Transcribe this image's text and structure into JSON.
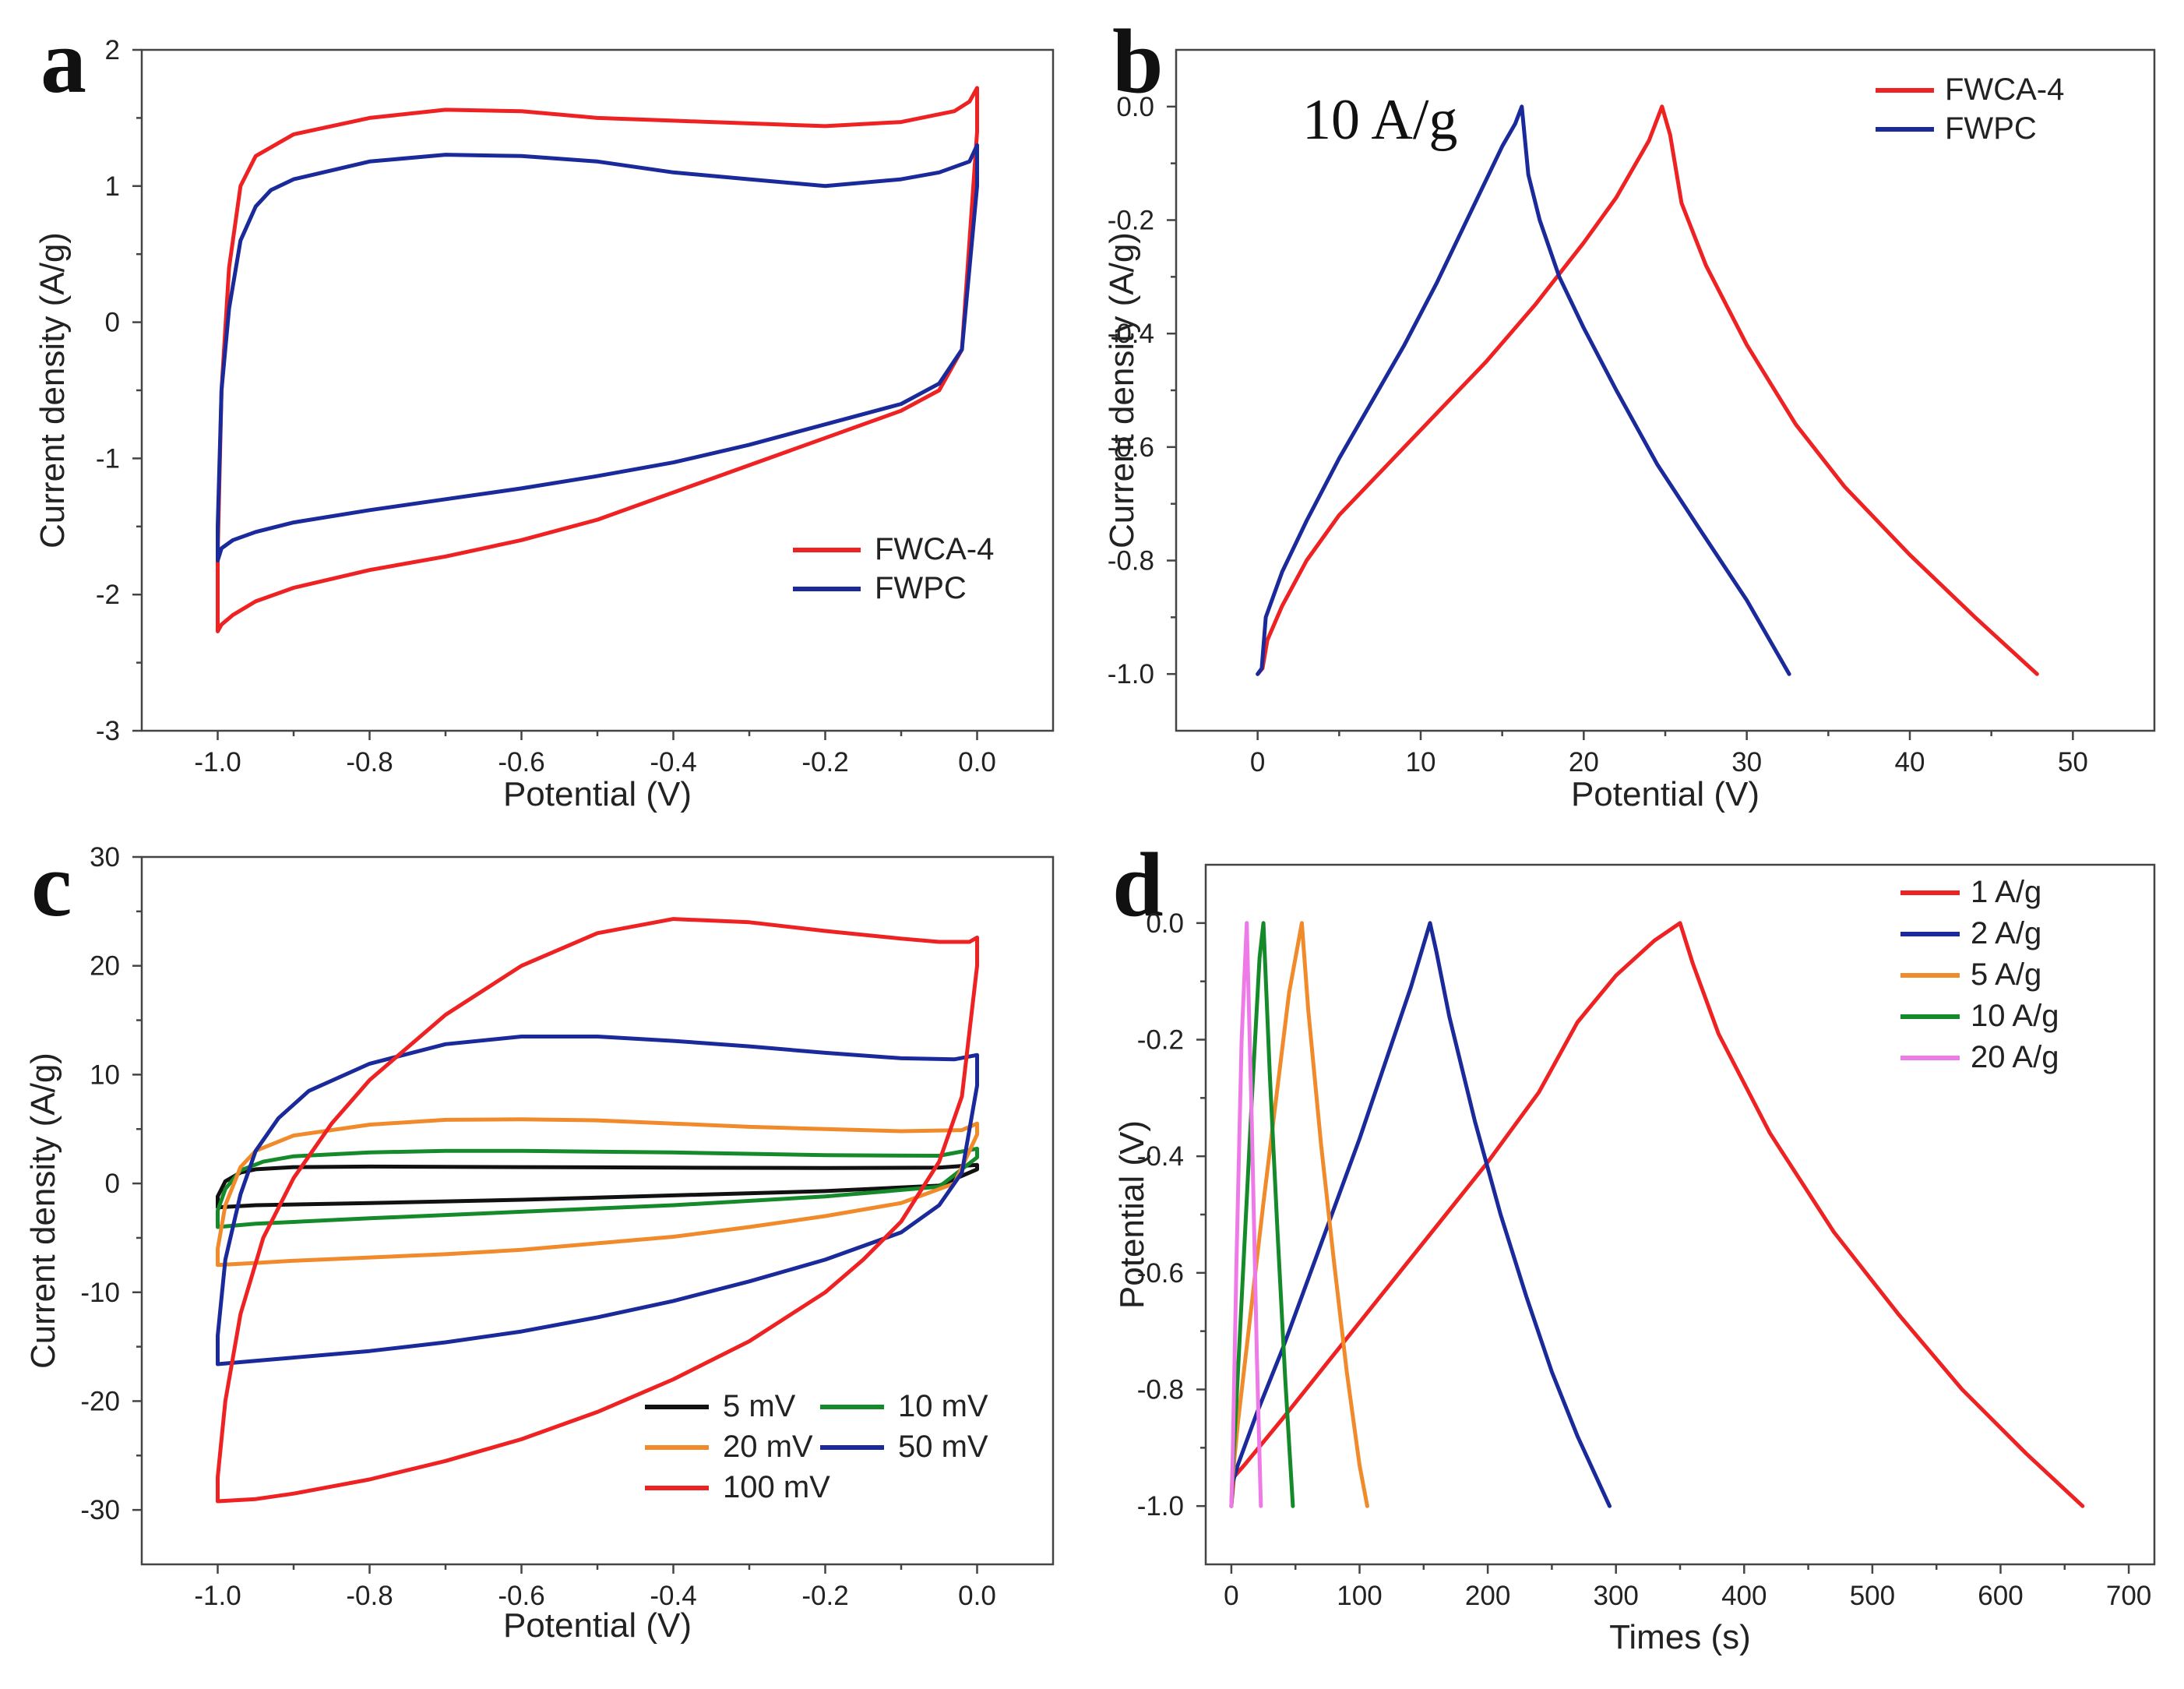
{
  "chart_data": [
    {
      "panel": "a",
      "type": "line",
      "xlabel": "Potential (V)",
      "ylabel": "Current density (A/g)",
      "xlim": [
        -1.1,
        0.1
      ],
      "ylim": [
        -3,
        2
      ],
      "xticks": [
        -1.0,
        -0.8,
        -0.6,
        -0.4,
        -0.2,
        0.0
      ],
      "xtick_labels": [
        "-1.0",
        "-0.8",
        "-0.6",
        "-0.4",
        "-0.2",
        "0.0"
      ],
      "yticks": [
        -3,
        -2,
        -1,
        0,
        1,
        2
      ],
      "ytick_labels": [
        "-3",
        "-2",
        "-1",
        "0",
        "1",
        "2"
      ],
      "legend_position": "lower-right",
      "series": [
        {
          "name": "FWCA-4",
          "color": "#ee2222",
          "x": [
            -1.0,
            -0.995,
            -0.985,
            -0.97,
            -0.95,
            -0.9,
            -0.8,
            -0.7,
            -0.6,
            -0.5,
            -0.4,
            -0.3,
            -0.2,
            -0.1,
            -0.03,
            -0.01,
            0.0,
            0.0,
            -0.02,
            -0.05,
            -0.1,
            -0.2,
            -0.3,
            -0.4,
            -0.5,
            -0.6,
            -0.7,
            -0.8,
            -0.9,
            -0.95,
            -0.98,
            -0.995,
            -1.0,
            -1.0
          ],
          "y": [
            -1.7,
            -0.5,
            0.4,
            1.0,
            1.22,
            1.38,
            1.5,
            1.56,
            1.55,
            1.5,
            1.48,
            1.46,
            1.44,
            1.47,
            1.55,
            1.62,
            1.72,
            1.4,
            -0.2,
            -0.5,
            -0.65,
            -0.85,
            -1.05,
            -1.25,
            -1.45,
            -1.6,
            -1.72,
            -1.82,
            -1.95,
            -2.05,
            -2.15,
            -2.22,
            -2.27,
            -1.7
          ]
        },
        {
          "name": "FWPC",
          "color": "#1a2a9a",
          "x": [
            -1.0,
            -0.995,
            -0.985,
            -0.97,
            -0.95,
            -0.93,
            -0.9,
            -0.8,
            -0.7,
            -0.6,
            -0.5,
            -0.4,
            -0.3,
            -0.2,
            -0.1,
            -0.05,
            -0.01,
            0.0,
            0.0,
            -0.02,
            -0.05,
            -0.1,
            -0.2,
            -0.3,
            -0.4,
            -0.5,
            -0.6,
            -0.7,
            -0.8,
            -0.9,
            -0.95,
            -0.98,
            -0.995,
            -1.0,
            -1.0
          ],
          "y": [
            -1.5,
            -0.5,
            0.1,
            0.6,
            0.85,
            0.97,
            1.05,
            1.18,
            1.23,
            1.22,
            1.18,
            1.1,
            1.05,
            1.0,
            1.05,
            1.1,
            1.18,
            1.3,
            1.0,
            -0.2,
            -0.45,
            -0.6,
            -0.75,
            -0.9,
            -1.03,
            -1.13,
            -1.22,
            -1.3,
            -1.38,
            -1.47,
            -1.54,
            -1.6,
            -1.66,
            -1.75,
            -1.5
          ]
        }
      ]
    },
    {
      "panel": "b",
      "type": "line",
      "annotation": "10 A/g",
      "xlabel": "Potential (V)",
      "ylabel": "Current density (A/g)",
      "xlim": [
        -5,
        55
      ],
      "ylim": [
        -1.1,
        0.1
      ],
      "xticks": [
        0,
        10,
        20,
        30,
        40,
        50
      ],
      "xtick_labels": [
        "0",
        "10",
        "20",
        "30",
        "40",
        "50"
      ],
      "yticks": [
        -1.0,
        -0.8,
        -0.6,
        -0.4,
        -0.2,
        0.0
      ],
      "ytick_labels": [
        "-1.0",
        "-0.8",
        "-0.6",
        "-0.4",
        "-0.2",
        "0.0"
      ],
      "legend_position": "top-right",
      "series": [
        {
          "name": "FWCA-4",
          "color": "#ee2222",
          "x": [
            0,
            0.3,
            0.6,
            1.5,
            3,
            5,
            8,
            11,
            14,
            17,
            20,
            22,
            24,
            24.8,
            25.3,
            26,
            27.5,
            30,
            33,
            36,
            40,
            44,
            47.8
          ],
          "y": [
            -1.0,
            -0.99,
            -0.94,
            -0.88,
            -0.8,
            -0.72,
            -0.63,
            -0.54,
            -0.45,
            -0.35,
            -0.24,
            -0.16,
            -0.06,
            0.0,
            -0.05,
            -0.17,
            -0.28,
            -0.42,
            -0.56,
            -0.67,
            -0.79,
            -0.9,
            -1.0
          ]
        },
        {
          "name": "FWPC",
          "color": "#1a2a9a",
          "x": [
            0,
            0.25,
            0.5,
            1.5,
            3,
            5,
            7,
            9,
            11,
            13,
            15,
            15.8,
            16.2,
            16.6,
            17.3,
            18.5,
            20,
            22,
            24.5,
            27,
            30,
            32.6
          ],
          "y": [
            -1.0,
            -0.99,
            -0.9,
            -0.82,
            -0.73,
            -0.62,
            -0.52,
            -0.42,
            -0.31,
            -0.19,
            -0.07,
            -0.03,
            0.0,
            -0.12,
            -0.2,
            -0.3,
            -0.39,
            -0.5,
            -0.63,
            -0.74,
            -0.87,
            -1.0
          ]
        }
      ]
    },
    {
      "panel": "c",
      "type": "line",
      "xlabel": "Potential (V)",
      "ylabel": "Current density (A/g)",
      "xlim": [
        -1.1,
        0.1
      ],
      "ylim": [
        -35,
        30
      ],
      "xticks": [
        -1.0,
        -0.8,
        -0.6,
        -0.4,
        -0.2,
        0.0
      ],
      "xtick_labels": [
        "-1.0",
        "-0.8",
        "-0.6",
        "-0.4",
        "-0.2",
        "0.0"
      ],
      "yticks": [
        -30,
        -20,
        -10,
        0,
        10,
        20,
        30
      ],
      "ytick_labels": [
        "-30",
        "-20",
        "-10",
        "0",
        "10",
        "20",
        "30"
      ],
      "legend_position": "bottom-right",
      "series": [
        {
          "name": "5 mV",
          "color": "#111111",
          "x": [
            -1.0,
            -0.99,
            -0.97,
            -0.95,
            -0.9,
            -0.8,
            -0.6,
            -0.4,
            -0.2,
            -0.05,
            0.0,
            0.0,
            -0.05,
            -0.2,
            -0.4,
            -0.6,
            -0.8,
            -0.95,
            -1.0,
            -1.0
          ],
          "y": [
            -1.2,
            0.2,
            1.0,
            1.3,
            1.5,
            1.55,
            1.5,
            1.45,
            1.42,
            1.45,
            1.7,
            1.3,
            -0.2,
            -0.7,
            -1.1,
            -1.5,
            -1.8,
            -2.0,
            -2.2,
            -1.2
          ]
        },
        {
          "name": "10 mV",
          "color": "#158a2a",
          "x": [
            -1.0,
            -0.99,
            -0.97,
            -0.94,
            -0.9,
            -0.8,
            -0.7,
            -0.6,
            -0.4,
            -0.2,
            -0.05,
            0.0,
            0.0,
            -0.05,
            -0.2,
            -0.4,
            -0.6,
            -0.8,
            -0.95,
            -1.0,
            -1.0
          ],
          "y": [
            -2.5,
            -0.5,
            1.2,
            2.0,
            2.5,
            2.85,
            3.0,
            3.0,
            2.85,
            2.6,
            2.55,
            3.2,
            2.4,
            -0.3,
            -1.2,
            -2.0,
            -2.6,
            -3.2,
            -3.7,
            -4.0,
            -2.5
          ]
        },
        {
          "name": "20 mV",
          "color": "#f08a2a",
          "x": [
            -1.0,
            -0.99,
            -0.97,
            -0.95,
            -0.9,
            -0.8,
            -0.7,
            -0.6,
            -0.5,
            -0.4,
            -0.3,
            -0.2,
            -0.1,
            -0.02,
            0.0,
            0.0,
            -0.03,
            -0.1,
            -0.2,
            -0.3,
            -0.4,
            -0.5,
            -0.6,
            -0.7,
            -0.8,
            -0.9,
            -0.95,
            -1.0,
            -1.0
          ],
          "y": [
            -6.0,
            -2.0,
            1.5,
            3.0,
            4.4,
            5.4,
            5.85,
            5.9,
            5.8,
            5.5,
            5.2,
            5.0,
            4.8,
            4.9,
            5.5,
            4.5,
            0.0,
            -1.8,
            -3.0,
            -4.0,
            -4.9,
            -5.5,
            -6.1,
            -6.5,
            -6.8,
            -7.1,
            -7.3,
            -7.5,
            -6.0
          ]
        },
        {
          "name": "50 mV",
          "color": "#1a2a9a",
          "x": [
            -1.0,
            -0.99,
            -0.97,
            -0.95,
            -0.92,
            -0.88,
            -0.8,
            -0.7,
            -0.6,
            -0.5,
            -0.4,
            -0.3,
            -0.2,
            -0.1,
            -0.03,
            0.0,
            0.0,
            -0.02,
            -0.05,
            -0.1,
            -0.2,
            -0.3,
            -0.4,
            -0.5,
            -0.6,
            -0.7,
            -0.8,
            -0.9,
            -0.95,
            -1.0,
            -1.0
          ],
          "y": [
            -14.0,
            -7.0,
            -1.0,
            3.0,
            6.0,
            8.5,
            11.0,
            12.8,
            13.5,
            13.5,
            13.1,
            12.6,
            12.0,
            11.5,
            11.4,
            11.8,
            9.0,
            1.0,
            -2.0,
            -4.5,
            -7.0,
            -9.0,
            -10.8,
            -12.3,
            -13.6,
            -14.6,
            -15.4,
            -16.0,
            -16.3,
            -16.6,
            -14.0
          ]
        },
        {
          "name": "100 mV",
          "color": "#ee2222",
          "x": [
            -1.0,
            -0.99,
            -0.97,
            -0.94,
            -0.9,
            -0.85,
            -0.8,
            -0.7,
            -0.6,
            -0.5,
            -0.4,
            -0.3,
            -0.2,
            -0.1,
            -0.05,
            -0.01,
            0.0,
            0.0,
            -0.02,
            -0.05,
            -0.1,
            -0.15,
            -0.2,
            -0.3,
            -0.4,
            -0.5,
            -0.6,
            -0.7,
            -0.8,
            -0.9,
            -0.95,
            -1.0,
            -1.0
          ],
          "y": [
            -27.0,
            -20.0,
            -12.0,
            -5.0,
            0.5,
            5.5,
            9.5,
            15.5,
            20.0,
            23.0,
            24.3,
            24.0,
            23.2,
            22.5,
            22.2,
            22.2,
            22.6,
            20.0,
            8.0,
            2.0,
            -3.5,
            -7.0,
            -10.0,
            -14.5,
            -18.0,
            -21.0,
            -23.5,
            -25.5,
            -27.2,
            -28.5,
            -29.0,
            -29.2,
            -27.0
          ]
        }
      ]
    },
    {
      "panel": "d",
      "type": "line",
      "xlabel": "Times (s)",
      "ylabel": "Potential (V)",
      "xlim": [
        -20,
        720
      ],
      "ylim": [
        -1.1,
        0.1
      ],
      "xticks": [
        0,
        100,
        200,
        300,
        400,
        500,
        600,
        700
      ],
      "xtick_labels": [
        "0",
        "100",
        "200",
        "300",
        "400",
        "500",
        "600",
        "700"
      ],
      "yticks": [
        -1.0,
        -0.8,
        -0.6,
        -0.4,
        -0.2,
        0.0
      ],
      "ytick_labels": [
        "-1.0",
        "-0.8",
        "-0.6",
        "-0.4",
        "-0.2",
        "0.0"
      ],
      "legend_position": "top-right",
      "series": [
        {
          "name": "1 A/g",
          "color": "#ee2222",
          "x": [
            0,
            2,
            10,
            40,
            80,
            120,
            160,
            200,
            240,
            270,
            300,
            330,
            350,
            360,
            380,
            420,
            470,
            520,
            570,
            620,
            664
          ],
          "y": [
            -1.0,
            -0.95,
            -0.93,
            -0.85,
            -0.74,
            -0.63,
            -0.52,
            -0.41,
            -0.29,
            -0.17,
            -0.09,
            -0.03,
            0.0,
            -0.07,
            -0.19,
            -0.36,
            -0.53,
            -0.67,
            -0.8,
            -0.91,
            -1.0
          ]
        },
        {
          "name": "2 A/g",
          "color": "#1a2a9a",
          "x": [
            0,
            1,
            5,
            20,
            40,
            60,
            80,
            100,
            120,
            140,
            155,
            160,
            170,
            190,
            210,
            230,
            250,
            270,
            295
          ],
          "y": [
            -1.0,
            -0.96,
            -0.93,
            -0.84,
            -0.73,
            -0.61,
            -0.49,
            -0.37,
            -0.24,
            -0.11,
            0.0,
            -0.05,
            -0.16,
            -0.34,
            -0.5,
            -0.64,
            -0.77,
            -0.88,
            -1.0
          ]
        },
        {
          "name": "5 A/g",
          "color": "#f08a2a",
          "x": [
            0,
            1,
            5,
            15,
            25,
            35,
            45,
            55,
            60,
            70,
            80,
            90,
            100,
            106
          ],
          "y": [
            -1.0,
            -0.95,
            -0.86,
            -0.67,
            -0.48,
            -0.3,
            -0.12,
            0.0,
            -0.15,
            -0.38,
            -0.58,
            -0.77,
            -0.93,
            -1.0
          ]
        },
        {
          "name": "10 A/g",
          "color": "#158a2a",
          "x": [
            0,
            1,
            4,
            10,
            16,
            22,
            25,
            30,
            36,
            42,
            48
          ],
          "y": [
            -1.0,
            -0.94,
            -0.82,
            -0.56,
            -0.3,
            -0.06,
            0.0,
            -0.26,
            -0.53,
            -0.78,
            -1.0
          ]
        },
        {
          "name": "20 A/g",
          "color": "#ee7ae8",
          "x": [
            0,
            1,
            4,
            8,
            12,
            16,
            20,
            23
          ],
          "y": [
            -1.0,
            -0.92,
            -0.58,
            -0.2,
            0.0,
            -0.35,
            -0.75,
            -1.0
          ]
        }
      ]
    }
  ],
  "panel_letters": [
    "a",
    "b",
    "c",
    "d"
  ]
}
